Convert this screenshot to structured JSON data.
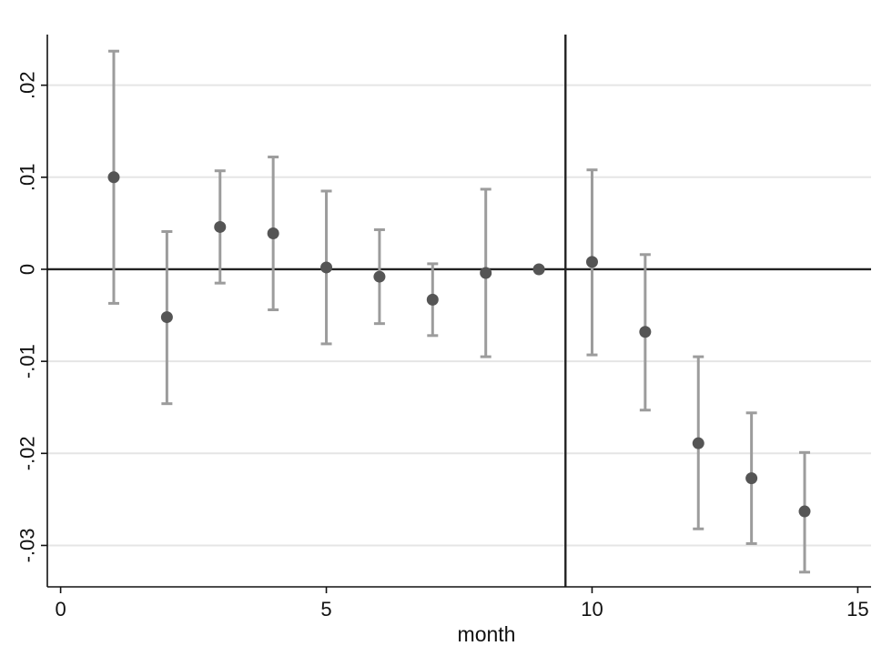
{
  "chart_data": {
    "type": "scatter",
    "title": "",
    "xlabel": "month",
    "ylabel": "",
    "xlim": [
      -0.25,
      15.25
    ],
    "ylim": [
      -0.0345,
      0.0255
    ],
    "xticks": [
      0,
      5,
      10,
      15
    ],
    "xtick_labels": [
      "0",
      "5",
      "10",
      "15"
    ],
    "yticks": [
      0.02,
      0.01,
      0,
      -0.01,
      -0.02,
      -0.03
    ],
    "ytick_labels": [
      ".02",
      ".01",
      "0",
      "-.01",
      "-.02",
      "-.03"
    ],
    "grid": true,
    "reference_lines": {
      "y": 0,
      "x": 9.5
    },
    "series": [
      {
        "x": [
          1,
          2,
          3,
          4,
          5,
          6,
          7,
          8,
          9,
          10,
          11,
          12,
          13,
          14
        ],
        "y": [
          0.01,
          -0.0052,
          0.0046,
          0.0039,
          0.0002,
          -0.0008,
          -0.0033,
          -0.0004,
          0.0,
          0.0008,
          -0.0068,
          -0.0189,
          -0.0227,
          -0.0263
        ],
        "ci_low": [
          -0.0037,
          -0.0146,
          -0.0015,
          -0.0044,
          -0.0081,
          -0.0059,
          -0.0072,
          -0.0095,
          0.0,
          -0.0093,
          -0.0153,
          -0.0282,
          -0.0298,
          -0.0329
        ],
        "ci_high": [
          0.0237,
          0.0041,
          0.0107,
          0.0122,
          0.0085,
          0.0043,
          0.0006,
          0.0087,
          0.0,
          0.0108,
          0.0016,
          -0.0095,
          -0.0156,
          -0.0199
        ]
      }
    ],
    "colors": {
      "ci": "#9c9c9c",
      "point": "#555555",
      "grid": "#e5e5e5",
      "axis": "#111111"
    }
  }
}
